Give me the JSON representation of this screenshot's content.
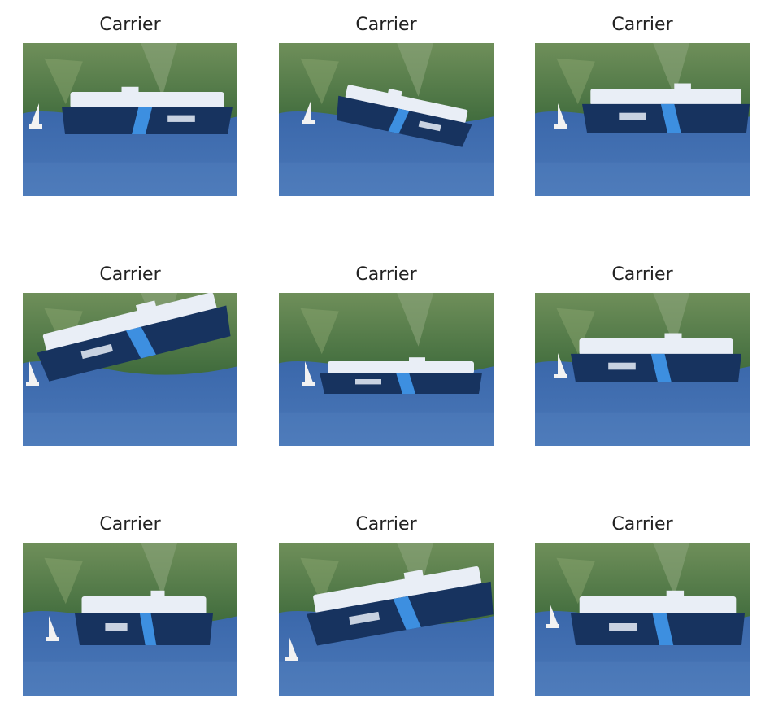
{
  "panels": [
    {
      "title": "Carrier",
      "icon": "ship-photo-icon"
    },
    {
      "title": "Carrier",
      "icon": "ship-photo-icon"
    },
    {
      "title": "Carrier",
      "icon": "ship-photo-icon"
    },
    {
      "title": "Carrier",
      "icon": "ship-photo-icon"
    },
    {
      "title": "Carrier",
      "icon": "ship-photo-icon"
    },
    {
      "title": "Carrier",
      "icon": "ship-photo-icon"
    },
    {
      "title": "Carrier",
      "icon": "ship-photo-icon"
    },
    {
      "title": "Carrier",
      "icon": "ship-photo-icon"
    },
    {
      "title": "Carrier",
      "icon": "ship-photo-icon"
    }
  ],
  "colors": {
    "sky_hill_green": "#6f8f5a",
    "hill_dark": "#3f6b3c",
    "sea_blue": "#3b66a8",
    "hull_navy": "#17335f",
    "deck_white": "#e9eef6",
    "stripe_blue": "#3d8fe0"
  }
}
